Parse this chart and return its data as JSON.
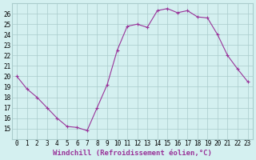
{
  "x": [
    0,
    1,
    2,
    3,
    4,
    5,
    6,
    7,
    8,
    9,
    10,
    11,
    12,
    13,
    14,
    15,
    16,
    17,
    18,
    19,
    20,
    21,
    22,
    23
  ],
  "y": [
    20,
    18.8,
    18,
    17,
    16,
    15.2,
    15.1,
    14.8,
    17,
    19.2,
    22.5,
    24.8,
    25,
    24.7,
    26.3,
    26.5,
    26.1,
    26.3,
    25.7,
    25.6,
    24,
    22,
    20.7,
    19.5
  ],
  "line_color": "#993399",
  "marker_color": "#993399",
  "bg_color": "#d4f0f0",
  "grid_color": "#aacccc",
  "xlabel": "Windchill (Refroidissement éolien,°C)",
  "xlabel_color": "#993399",
  "ylim": [
    14,
    27
  ],
  "xlim_min": -0.5,
  "xlim_max": 23.5,
  "yticks": [
    15,
    16,
    17,
    18,
    19,
    20,
    21,
    22,
    23,
    24,
    25,
    26
  ],
  "xticks": [
    0,
    1,
    2,
    3,
    4,
    5,
    6,
    7,
    8,
    9,
    10,
    11,
    12,
    13,
    14,
    15,
    16,
    17,
    18,
    19,
    20,
    21,
    22,
    23
  ],
  "tick_fontsize": 5.5,
  "label_fontsize": 6.5
}
